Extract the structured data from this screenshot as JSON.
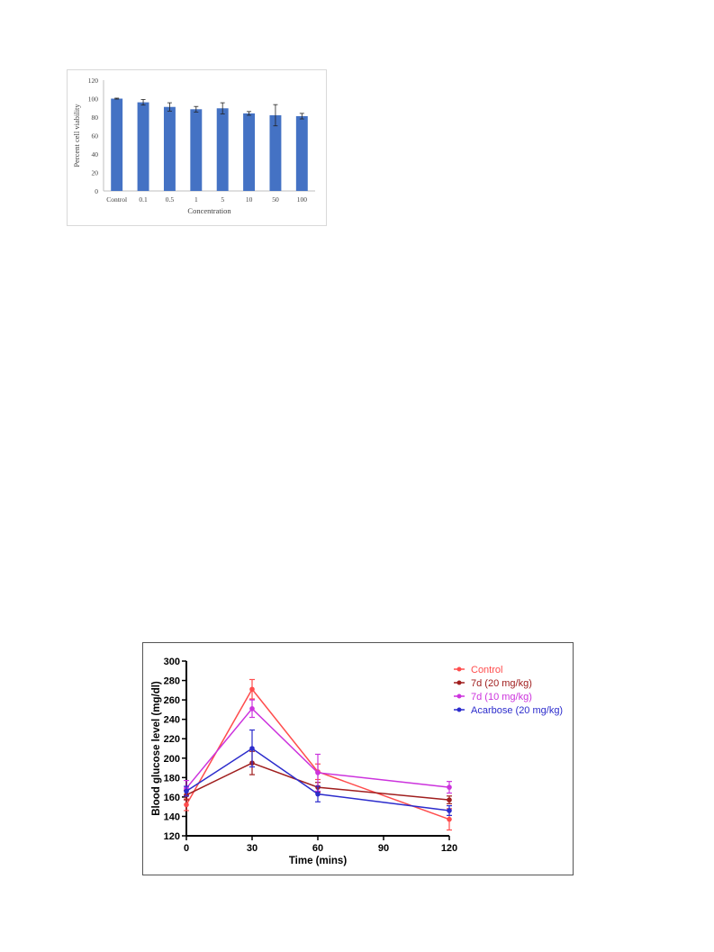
{
  "chart_data": [
    {
      "type": "bar",
      "title": "",
      "xlabel": "Concentration",
      "ylabel": "Percent cell viability",
      "ylim": [
        0,
        120
      ],
      "yticks": [
        0,
        20,
        40,
        60,
        80,
        100,
        120
      ],
      "categories": [
        "Control",
        "0.1",
        "0.5",
        "1",
        "5",
        "10",
        "50",
        "100"
      ],
      "values": [
        100,
        96,
        91,
        88.5,
        89.5,
        84,
        82,
        81
      ],
      "errors": [
        0.5,
        3,
        4.5,
        3,
        6,
        2,
        11.5,
        3
      ],
      "grid": false,
      "bar_color": "#4472c4"
    },
    {
      "type": "line",
      "title": "",
      "xlabel": "Time (mins)",
      "ylabel": "Blood glucose level (mg/dl)",
      "xlim": [
        0,
        120
      ],
      "ylim": [
        120,
        300
      ],
      "xticks": [
        0,
        30,
        60,
        90,
        120
      ],
      "yticks": [
        120,
        140,
        160,
        180,
        200,
        220,
        240,
        260,
        280,
        300
      ],
      "x": [
        0,
        30,
        60,
        120
      ],
      "legend_position": "top-right",
      "grid": false,
      "series": [
        {
          "name": "Control",
          "color": "#ff4d4d",
          "values": [
            152,
            271,
            186,
            137
          ],
          "errors": [
            6,
            10,
            8,
            11
          ]
        },
        {
          "name": "7d (20 mg/kg)",
          "color": "#a01e1e",
          "values": [
            162,
            195,
            170,
            157
          ],
          "errors": [
            5,
            12,
            5,
            4
          ]
        },
        {
          "name": "7d (10 mg/kg)",
          "color": "#cc33dd",
          "values": [
            169,
            251,
            185,
            170
          ],
          "errors": [
            8,
            9,
            19,
            6
          ]
        },
        {
          "name": "Acarbose (20 mg/kg)",
          "color": "#2c2ccc",
          "values": [
            166,
            210,
            163,
            146
          ],
          "errors": [
            5,
            19,
            8,
            5
          ]
        }
      ]
    }
  ]
}
